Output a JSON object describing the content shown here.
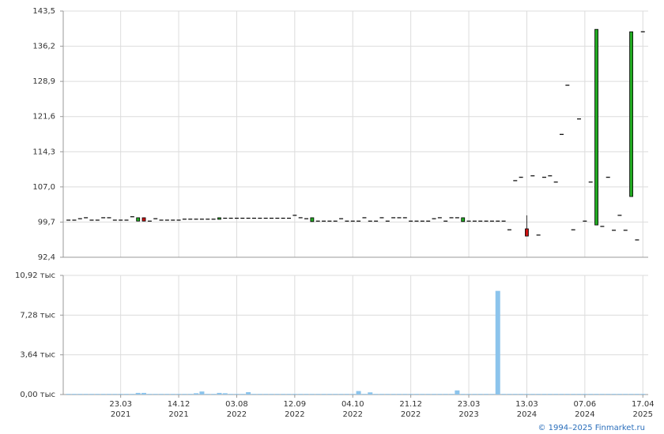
{
  "chart_data": [
    {
      "type": "candlestick",
      "open": [
        100.1,
        100.1,
        100.4,
        100.6,
        100.1,
        100.1,
        100.6,
        100.6,
        100.1,
        100.1,
        100.1,
        100.8,
        99.9,
        100.6,
        99.9,
        100.4,
        100.1,
        100.1,
        100.1,
        100.1,
        100.3,
        100.3,
        100.3,
        100.3,
        100.3,
        100.3,
        100.3,
        100.5,
        100.5,
        100.5,
        100.5,
        100.5,
        100.5,
        100.5,
        100.5,
        100.5,
        100.5,
        100.5,
        100.5,
        101.1,
        100.6,
        100.4,
        99.8,
        99.9,
        99.9,
        99.9,
        99.9,
        100.4,
        99.9,
        99.9,
        99.9,
        100.6,
        99.9,
        99.9,
        100.6,
        99.9,
        100.6,
        100.6,
        100.6,
        99.9,
        99.9,
        99.9,
        99.9,
        100.4,
        100.6,
        99.9,
        100.6,
        100.6,
        99.8,
        99.9,
        99.9,
        99.9,
        99.9,
        99.9,
        99.9,
        99.9,
        98.1,
        108.3,
        109.0,
        98.3,
        109.3,
        97.0,
        109.0,
        109.3,
        108.0,
        117.9,
        128.1,
        98.1,
        121.1,
        99.9,
        108.0,
        99.1,
        98.8,
        109.0,
        98.0,
        101.1,
        98.0,
        105.0,
        96.0,
        139.2
      ],
      "high": [
        100.1,
        100.1,
        100.4,
        100.6,
        100.1,
        100.1,
        100.6,
        100.6,
        100.1,
        100.1,
        100.1,
        100.8,
        100.6,
        100.6,
        99.9,
        100.4,
        100.1,
        100.1,
        100.1,
        100.1,
        100.3,
        100.3,
        100.3,
        100.3,
        100.3,
        100.3,
        100.6,
        100.5,
        100.5,
        100.5,
        100.5,
        100.5,
        100.5,
        100.5,
        100.5,
        100.5,
        100.5,
        100.5,
        100.5,
        101.1,
        100.6,
        100.4,
        100.6,
        99.9,
        99.9,
        99.9,
        99.9,
        100.4,
        99.9,
        99.9,
        99.9,
        100.6,
        99.9,
        99.9,
        100.6,
        99.9,
        100.6,
        100.6,
        100.6,
        99.9,
        99.9,
        99.9,
        99.9,
        100.4,
        100.6,
        99.9,
        100.6,
        100.6,
        100.6,
        99.9,
        99.9,
        99.9,
        99.9,
        99.9,
        99.9,
        99.9,
        98.1,
        108.3,
        109.0,
        101.1,
        109.3,
        97.0,
        109.0,
        109.3,
        108.0,
        117.9,
        128.1,
        98.1,
        121.1,
        99.9,
        108.0,
        139.7,
        98.8,
        109.0,
        98.0,
        101.1,
        98.0,
        139.2,
        96.0,
        139.2
      ],
      "low": [
        100.1,
        100.1,
        100.4,
        100.6,
        100.1,
        100.1,
        100.6,
        100.6,
        100.1,
        100.1,
        100.1,
        100.8,
        99.9,
        99.9,
        99.9,
        100.4,
        100.1,
        100.1,
        100.1,
        100.1,
        100.3,
        100.3,
        100.3,
        100.3,
        100.3,
        100.3,
        100.3,
        100.5,
        100.5,
        100.5,
        100.5,
        100.5,
        100.5,
        100.5,
        100.5,
        100.5,
        100.5,
        100.5,
        100.5,
        101.1,
        100.6,
        100.4,
        99.8,
        99.9,
        99.9,
        99.9,
        99.9,
        100.4,
        99.9,
        99.9,
        99.9,
        100.6,
        99.9,
        99.9,
        100.6,
        99.9,
        100.6,
        100.6,
        100.6,
        99.9,
        99.9,
        99.9,
        99.9,
        100.4,
        100.6,
        99.9,
        100.6,
        100.6,
        99.8,
        99.9,
        99.9,
        99.9,
        99.9,
        99.9,
        99.9,
        99.9,
        98.1,
        108.3,
        109.0,
        96.8,
        109.3,
        97.0,
        109.0,
        109.3,
        108.0,
        117.9,
        128.1,
        98.1,
        121.1,
        99.9,
        108.0,
        99.1,
        98.8,
        109.0,
        98.0,
        101.1,
        98.0,
        105.0,
        96.0,
        139.2
      ],
      "close": [
        100.1,
        100.1,
        100.4,
        100.6,
        100.1,
        100.1,
        100.6,
        100.6,
        100.1,
        100.1,
        100.1,
        100.8,
        100.6,
        99.9,
        99.9,
        100.4,
        100.1,
        100.1,
        100.1,
        100.1,
        100.3,
        100.3,
        100.3,
        100.3,
        100.3,
        100.3,
        100.6,
        100.5,
        100.5,
        100.5,
        100.5,
        100.5,
        100.5,
        100.5,
        100.5,
        100.5,
        100.5,
        100.5,
        100.5,
        101.1,
        100.6,
        100.4,
        100.6,
        99.9,
        99.9,
        99.9,
        99.9,
        100.4,
        99.9,
        99.9,
        99.9,
        100.6,
        99.9,
        99.9,
        100.6,
        99.9,
        100.6,
        100.6,
        100.6,
        99.9,
        99.9,
        99.9,
        99.9,
        100.4,
        100.6,
        99.9,
        100.6,
        100.6,
        100.6,
        99.9,
        99.9,
        99.9,
        99.9,
        99.9,
        99.9,
        99.9,
        98.1,
        108.3,
        109.0,
        96.8,
        109.3,
        97.0,
        109.0,
        109.3,
        108.0,
        117.9,
        128.1,
        98.1,
        121.1,
        99.9,
        108.0,
        139.7,
        98.8,
        109.0,
        98.0,
        101.1,
        98.0,
        139.2,
        96.0,
        139.2
      ],
      "up_color": "#22aa22",
      "down_color": "#cc1111",
      "ylim": [
        92.4,
        143.5
      ],
      "yticks": [
        {
          "value": 92.4,
          "label": "92,4"
        },
        {
          "value": 99.7,
          "label": "99,7"
        },
        {
          "value": 107.0,
          "label": "107,0"
        },
        {
          "value": 114.3,
          "label": "114,3"
        },
        {
          "value": 121.6,
          "label": "121,6"
        },
        {
          "value": 128.9,
          "label": "128,9"
        },
        {
          "value": 136.2,
          "label": "136,2"
        },
        {
          "value": 143.5,
          "label": "143,5"
        }
      ],
      "grid": true
    },
    {
      "type": "bar",
      "categories": [
        null,
        null,
        null,
        null,
        null,
        null,
        null,
        null,
        null,
        [
          "23.03",
          "2021"
        ],
        null,
        null,
        null,
        null,
        null,
        null,
        null,
        null,
        null,
        [
          "14.12",
          "2021"
        ],
        null,
        null,
        null,
        null,
        null,
        null,
        null,
        null,
        null,
        [
          "03.08",
          "2022"
        ],
        null,
        null,
        null,
        null,
        null,
        null,
        null,
        null,
        null,
        [
          "12.09",
          "2022"
        ],
        null,
        null,
        null,
        null,
        null,
        null,
        null,
        null,
        null,
        [
          "04.10",
          "2022"
        ],
        null,
        null,
        null,
        null,
        null,
        null,
        null,
        null,
        null,
        [
          "21.12",
          "2022"
        ],
        null,
        null,
        null,
        null,
        null,
        null,
        null,
        null,
        null,
        [
          "23.03",
          "2023"
        ],
        null,
        null,
        null,
        null,
        null,
        null,
        null,
        null,
        null,
        [
          "13.03",
          "2024"
        ],
        null,
        null,
        null,
        null,
        null,
        null,
        null,
        null,
        null,
        [
          "07.06",
          "2024"
        ],
        null,
        null,
        null,
        null,
        null,
        null,
        null,
        null,
        null,
        [
          "17.04",
          "2025"
        ]
      ],
      "values": [
        0.06,
        0.06,
        0.06,
        0.06,
        0.06,
        0.06,
        0.06,
        0.06,
        0.06,
        0.06,
        0.06,
        0.06,
        0.15,
        0.15,
        0.06,
        0.06,
        0.06,
        0.06,
        0.06,
        0.06,
        0.06,
        0.06,
        0.12,
        0.28,
        0.06,
        0.06,
        0.15,
        0.12,
        0.06,
        0.06,
        0.06,
        0.22,
        0.06,
        0.06,
        0.06,
        0.06,
        0.06,
        0.06,
        0.06,
        0.06,
        0.06,
        0.06,
        0.06,
        0.06,
        0.06,
        0.06,
        0.06,
        0.06,
        0.06,
        0.06,
        0.32,
        0.06,
        0.2,
        0.06,
        0.06,
        0.06,
        0.06,
        0.06,
        0.06,
        0.06,
        0.06,
        0.06,
        0.06,
        0.06,
        0.06,
        0.06,
        0.06,
        0.38,
        0.06,
        0.06,
        0.06,
        0.06,
        0.06,
        0.06,
        9.5,
        0.06,
        0.06,
        0.06,
        0.06,
        0.06,
        0.06,
        0.06,
        0.06,
        0.06,
        0.06,
        0.06,
        0.06,
        0.06,
        0.06,
        0.06,
        0.06,
        0.06,
        0.06,
        0.06,
        0.06,
        0.06,
        0.06,
        0.06,
        0.06,
        0.06
      ],
      "color": "#8cc4ec",
      "ylim": [
        0,
        10.92
      ],
      "yticks": [
        {
          "value": 0,
          "label": "0,00 тыс"
        },
        {
          "value": 3.64,
          "label": "3,64 тыс"
        },
        {
          "value": 7.28,
          "label": "7,28 тыс"
        },
        {
          "value": 10.92,
          "label": "10,92 тыс"
        }
      ],
      "grid": true
    }
  ],
  "footer": "© 1994–2025 Finmarket.ru"
}
